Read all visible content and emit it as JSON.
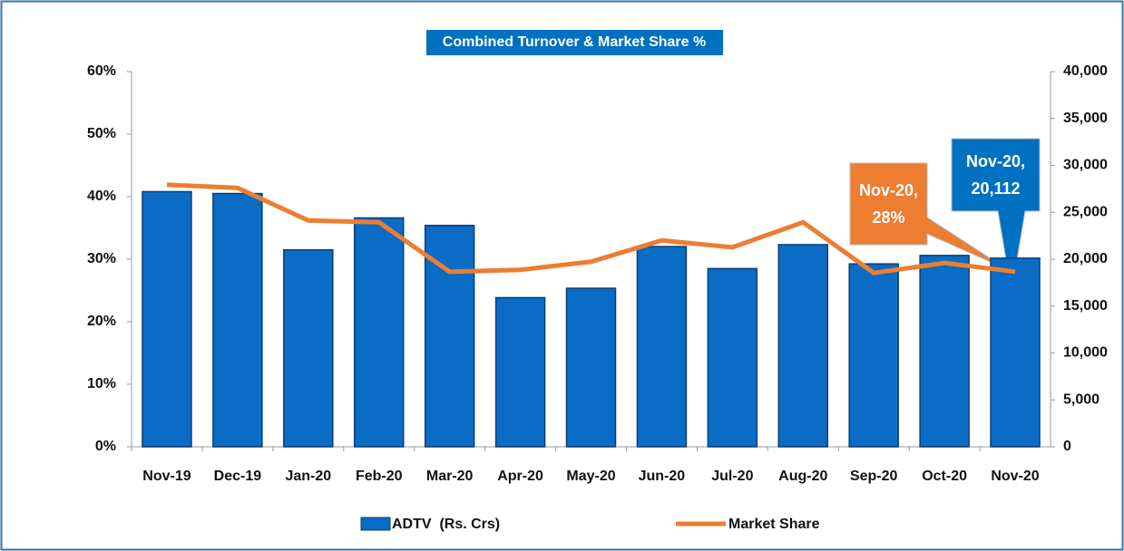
{
  "chart_data": {
    "type": "bar_line",
    "title": "Combined Turnover & Market Share %",
    "categories": [
      "Nov-19",
      "Dec-19",
      "Jan-20",
      "Feb-20",
      "Mar-20",
      "Apr-20",
      "May-20",
      "Jun-20",
      "Jul-20",
      "Aug-20",
      "Sep-20",
      "Oct-20",
      "Nov-20"
    ],
    "series": [
      {
        "name": "ADTV  (Rs. Crs)",
        "type": "bar",
        "axis": "y2",
        "color": "#0a6cc4",
        "values": [
          27200,
          27000,
          21000,
          24400,
          23600,
          15900,
          16900,
          21350,
          19000,
          21550,
          19500,
          20400,
          20112
        ]
      },
      {
        "name": "Market Share",
        "type": "line",
        "axis": "y",
        "color": "#ed7d31",
        "values": [
          41.9,
          41.4,
          36.2,
          35.9,
          28.0,
          28.3,
          29.6,
          33.0,
          31.9,
          35.9,
          27.8,
          29.4,
          28
        ]
      }
    ],
    "ylim": [
      0,
      60
    ],
    "yticks": [
      {
        "value": 0,
        "label": "0%"
      },
      {
        "value": 10,
        "label": "10%"
      },
      {
        "value": 20,
        "label": "20%"
      },
      {
        "value": 30,
        "label": "30%"
      },
      {
        "value": 40,
        "label": "40%"
      },
      {
        "value": 50,
        "label": "50%"
      },
      {
        "value": 60,
        "label": "60%"
      }
    ],
    "y2lim": [
      0,
      40000
    ],
    "y2ticks": [
      0,
      {
        "value": 5000,
        "label": "5,000"
      },
      {
        "value": 10000,
        "label": "10,000"
      },
      {
        "value": 15000,
        "label": "15,000"
      },
      {
        "value": 20000,
        "label": "20,000"
      },
      {
        "value": 25000,
        "label": "25,000"
      },
      {
        "value": 30000,
        "label": "30,000"
      },
      {
        "value": 35000,
        "label": "35,000"
      },
      {
        "value": 40000,
        "label": "40,000"
      }
    ],
    "annotations": [
      "Nov-20, 28%",
      "Nov-20, 20,112"
    ],
    "legend": "bottom",
    "grid": false
  }
}
